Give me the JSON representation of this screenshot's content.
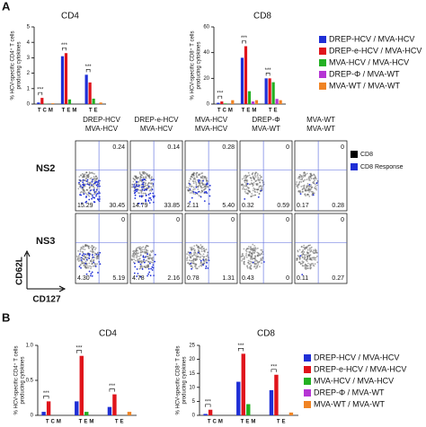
{
  "panels": {
    "a": "A",
    "b": "B"
  },
  "chart_data": [
    {
      "type": "bar",
      "title": "CD4",
      "y_label": [
        "% HCV-specific CD4⁺ T cells",
        "producing cytokines"
      ],
      "categories": [
        "TCM",
        "TEM",
        "TE"
      ],
      "series": [
        {
          "name": "DREP-HCV / MVA-HCV",
          "color": "#1f2fd6",
          "values": [
            0.1,
            3.1,
            1.9
          ]
        },
        {
          "name": "DREP-e-HCV / MVA-HCV",
          "color": "#e0141b",
          "values": [
            0.4,
            3.3,
            1.4
          ]
        },
        {
          "name": "MVA-HCV / MVA-HCV",
          "color": "#23b023",
          "values": [
            0.02,
            0.3,
            0.35
          ]
        },
        {
          "name": "DREP-Φ / MVA-WT",
          "color": "#b535d4",
          "values": [
            0,
            0,
            0
          ]
        },
        {
          "name": "MVA-WT / MVA-WT",
          "color": "#f08424",
          "values": [
            0.05,
            0,
            0.1
          ]
        }
      ],
      "ylim": [
        0,
        5
      ],
      "yticks": [
        0,
        1,
        2,
        3,
        4,
        5
      ],
      "significance": [
        {
          "category": "TCM",
          "label": "***"
        },
        {
          "category": "TEM",
          "label": "***"
        },
        {
          "category": "TE",
          "label": "***"
        }
      ],
      "legend": false
    },
    {
      "type": "bar",
      "title": "CD8",
      "y_label": [
        "% HCV-specific CD8⁺ T cells",
        "producing cytokines"
      ],
      "categories": [
        "TCM",
        "TEM",
        "TE"
      ],
      "series": [
        {
          "name": "DREP-HCV / MVA-HCV",
          "color": "#1f2fd6",
          "values": [
            1,
            36,
            20
          ]
        },
        {
          "name": "DREP-e-HCV / MVA-HCV",
          "color": "#e0141b",
          "values": [
            2,
            45,
            20
          ]
        },
        {
          "name": "MVA-HCV / MVA-HCV",
          "color": "#23b023",
          "values": [
            0.5,
            10,
            17
          ]
        },
        {
          "name": "DREP-Φ / MVA-WT",
          "color": "#b535d4",
          "values": [
            0,
            2,
            4
          ]
        },
        {
          "name": "MVA-WT / MVA-WT",
          "color": "#f08424",
          "values": [
            3,
            3,
            3
          ]
        }
      ],
      "ylim": [
        0,
        60
      ],
      "yticks": [
        0,
        20,
        40,
        60
      ],
      "significance": [
        {
          "category": "TCM",
          "label": "***"
        },
        {
          "category": "TEM",
          "label": "***"
        },
        {
          "category": "TE",
          "label": "***"
        }
      ],
      "legend": true
    },
    {
      "type": "bar",
      "title": "CD4",
      "y_label": [
        "% HCV-specific CD4⁺ T cells",
        "producing cytokines"
      ],
      "categories": [
        "TCM",
        "TEM",
        "TE"
      ],
      "series": [
        {
          "name": "DREP-HCV / MVA-HCV",
          "color": "#1f2fd6",
          "values": [
            0.05,
            0.2,
            0.12
          ]
        },
        {
          "name": "DREP-e-HCV / MVA-HCV",
          "color": "#e0141b",
          "values": [
            0.2,
            0.85,
            0.3
          ]
        },
        {
          "name": "MVA-HCV / MVA-HCV",
          "color": "#23b023",
          "values": [
            0,
            0.05,
            0
          ]
        },
        {
          "name": "DREP-Φ / MVA-WT",
          "color": "#b535d4",
          "values": [
            0,
            0,
            0
          ]
        },
        {
          "name": "MVA-WT / MVA-WT",
          "color": "#f08424",
          "values": [
            0,
            0,
            0.05
          ]
        }
      ],
      "ylim": [
        0,
        1
      ],
      "yticks": [
        0,
        0.5,
        {
          "value": 1,
          "label": "1.0"
        }
      ],
      "significance": [
        {
          "category": "TCM",
          "label": "***"
        },
        {
          "category": "TEM",
          "label": "***"
        },
        {
          "category": "TE",
          "label": "***"
        }
      ],
      "legend": false
    },
    {
      "type": "bar",
      "title": "CD8",
      "y_label": [
        "% HCV-specific CD8⁺ T cells",
        "producing cytokines"
      ],
      "categories": [
        "TCM",
        "TEM",
        "TE"
      ],
      "series": [
        {
          "name": "DREP-HCV / MVA-HCV",
          "color": "#1f2fd6",
          "values": [
            0.5,
            12,
            9
          ]
        },
        {
          "name": "DREP-e-HCV / MVA-HCV",
          "color": "#e0141b",
          "values": [
            2,
            22,
            14.5
          ]
        },
        {
          "name": "MVA-HCV / MVA-HCV",
          "color": "#23b023",
          "values": [
            0,
            4,
            0
          ]
        },
        {
          "name": "DREP-Φ / MVA-WT",
          "color": "#b535d4",
          "values": [
            0,
            0,
            0
          ]
        },
        {
          "name": "MVA-WT / MVA-WT",
          "color": "#f08424",
          "values": [
            0,
            0,
            1
          ]
        }
      ],
      "ylim": [
        0,
        25
      ],
      "yticks": [
        0,
        5,
        10,
        15,
        20,
        25
      ],
      "significance": [
        {
          "category": "TCM",
          "label": "***"
        },
        {
          "category": "TEM",
          "label": "***"
        },
        {
          "category": "TE",
          "label": "***"
        }
      ],
      "legend": true
    }
  ],
  "flow": {
    "columns": [
      [
        "DREP-HCV",
        "MVA-HCV"
      ],
      [
        "DREP-e-HCV",
        "MVA-HCV"
      ],
      [
        "MVA-HCV",
        "MVA-HCV"
      ],
      [
        "DREP-Φ",
        "MVA-WT"
      ],
      [
        "MVA-WT",
        "MVA-WT"
      ]
    ],
    "rows": [
      {
        "label": "NS2",
        "cells": [
          [
            "0.24",
            "15.29",
            "30.45"
          ],
          [
            "0.14",
            "14.79",
            "33.85"
          ],
          [
            "0.28",
            "2.11",
            "5.40"
          ],
          [
            "0",
            "0.32",
            "0.59"
          ],
          [
            "0",
            "0.17",
            "0.28"
          ]
        ]
      },
      {
        "label": "NS3",
        "cells": [
          [
            "0",
            "4.30",
            "5.19"
          ],
          [
            "0",
            "4.78",
            "2.16"
          ],
          [
            "0",
            "0.78",
            "1.31"
          ],
          [
            "0",
            "0.43",
            "0"
          ],
          [
            "0",
            "0.11",
            "0.27"
          ]
        ]
      }
    ],
    "legend": [
      "CD8",
      "CD8 Response"
    ],
    "y_axis": "CD62L",
    "x_axis": "CD127"
  }
}
